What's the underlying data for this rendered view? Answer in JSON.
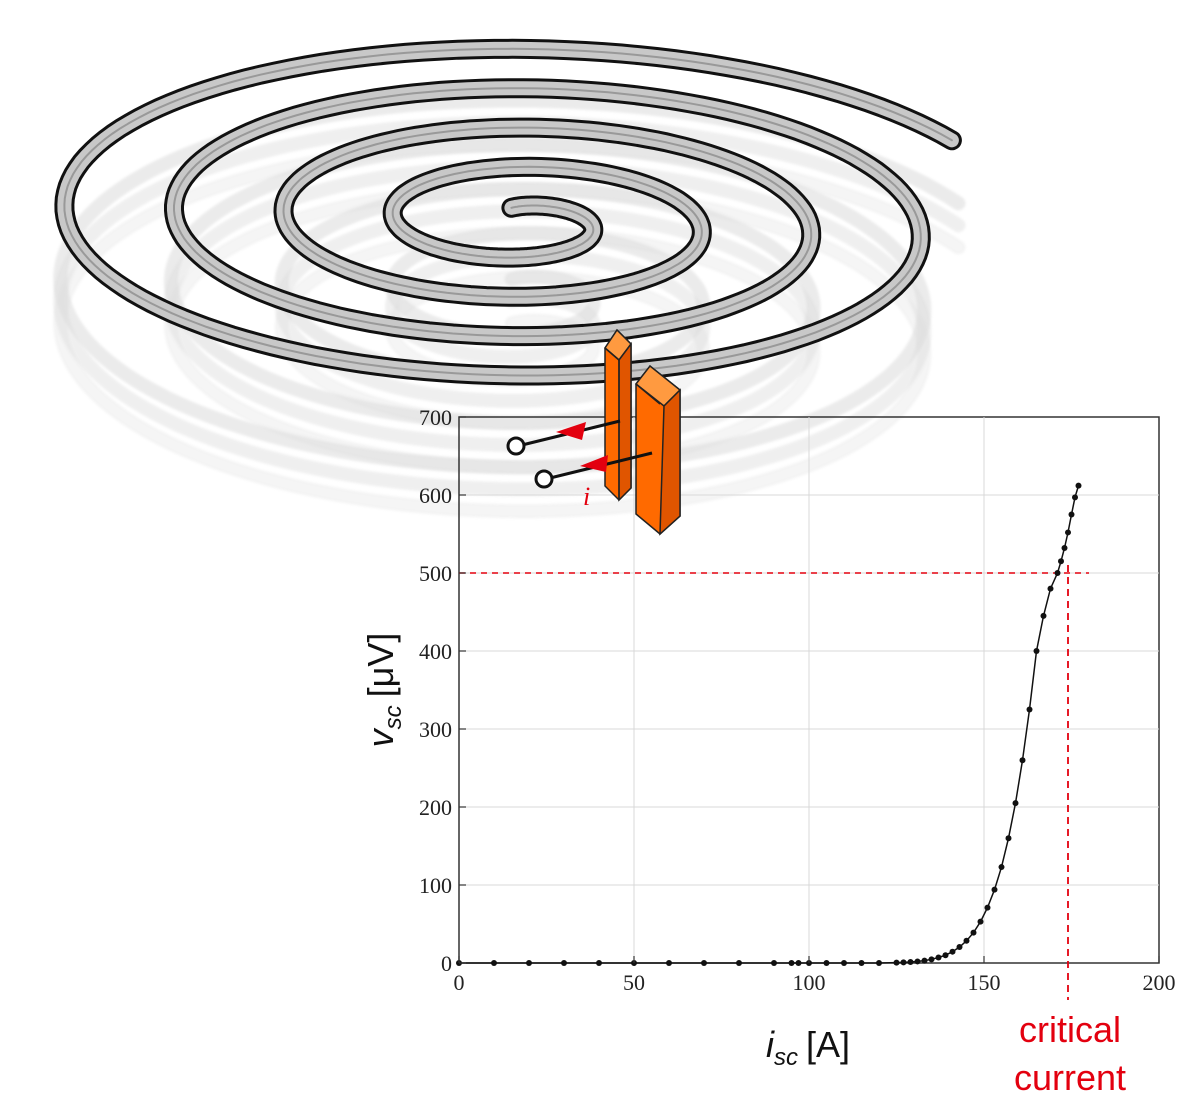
{
  "chart_data": {
    "type": "scatter",
    "xlabel": {
      "var": "i",
      "sub": "sc",
      "unit": "[A]"
    },
    "ylabel": {
      "var": "v",
      "sub": "sc",
      "unit": "[μV]"
    },
    "xlim": [
      0,
      200
    ],
    "ylim": [
      0,
      700
    ],
    "xticks": [
      "0",
      "50",
      "100",
      "150",
      "200"
    ],
    "yticks": [
      "0",
      "100",
      "200",
      "300",
      "400",
      "500",
      "600",
      "700"
    ],
    "grid": true,
    "series": [
      {
        "color": "#111111",
        "x": [
          0,
          10,
          20,
          30,
          40,
          50,
          60,
          70,
          80,
          90,
          95,
          97,
          100,
          105,
          110,
          115,
          120,
          125,
          127,
          129,
          131,
          133,
          135,
          137,
          139,
          141,
          143,
          145,
          147,
          149,
          151,
          153,
          155,
          157,
          159,
          161,
          163,
          165,
          167,
          169,
          171,
          172,
          173,
          174,
          175,
          176,
          177
        ],
        "y": [
          0,
          0,
          0,
          0,
          0,
          0,
          0,
          0,
          0,
          0,
          0,
          0,
          0,
          0,
          0,
          0,
          0,
          0.5,
          0.8,
          1.3,
          2,
          3.1,
          4.7,
          7,
          10,
          14.5,
          20.5,
          28.5,
          39,
          53,
          71,
          94,
          123,
          160,
          205,
          260,
          325,
          400,
          445,
          480,
          500,
          515,
          532,
          552,
          575,
          597,
          612
        ]
      }
    ],
    "reference_lines": {
      "y": 500,
      "x": 174,
      "color": "#e3000f"
    },
    "annotations": {
      "critical": [
        "critical",
        "current"
      ],
      "current_arrow": "i"
    }
  },
  "colors": {
    "tape_fill": "#c8c8c8",
    "tape_edge": "#111111",
    "terminal": "#ff6a00",
    "arrow": "#e3000f"
  }
}
